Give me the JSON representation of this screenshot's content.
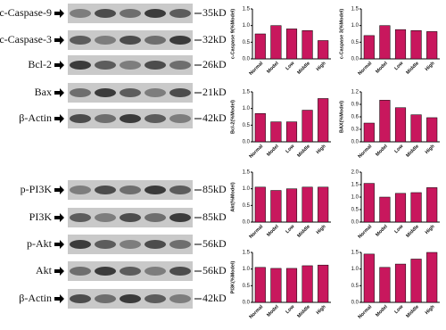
{
  "blots": [
    {
      "label": "c-Caspase-9",
      "size": "35kD"
    },
    {
      "label": "c-Caspase-3",
      "size": "32kD"
    },
    {
      "label": "Bcl-2",
      "size": "26kD"
    },
    {
      "label": "Bax",
      "size": "21kD"
    },
    {
      "label": "β-Actin",
      "size": "42kD"
    },
    {
      "label": "p-PI3K",
      "size": "85kD"
    },
    {
      "label": "PI3K",
      "size": "85kD"
    },
    {
      "label": "p-Akt",
      "size": "56kD"
    },
    {
      "label": "Akt",
      "size": "56kD"
    },
    {
      "label": "β-Actin",
      "size": "42kD"
    }
  ],
  "chart_data": [
    {
      "type": "bar",
      "y_label": "c-Caspase 9(%Model)",
      "categories": [
        "Normal",
        "Model",
        "Low",
        "Middle",
        "High"
      ],
      "values": [
        0.75,
        1.0,
        0.9,
        0.85,
        0.55
      ],
      "color": "#c8175d",
      "ylim": [
        0,
        1.5
      ],
      "yticks": [
        {
          "value": 0,
          "label": "0.0"
        },
        0.5,
        {
          "value": 1,
          "label": "1.0"
        },
        1.5
      ]
    },
    {
      "type": "bar",
      "y_label": "c-Caspase 3(%Model)",
      "categories": [
        "Normal",
        "Model",
        "Low",
        "Middle",
        "High"
      ],
      "values": [
        0.7,
        1.0,
        0.88,
        0.85,
        0.82
      ],
      "color": "#c8175d",
      "ylim": [
        0,
        1.5
      ],
      "yticks": [
        {
          "value": 0,
          "label": "0.0"
        },
        0.5,
        {
          "value": 1,
          "label": "1.0"
        },
        1.5
      ]
    },
    {
      "type": "bar",
      "y_label": "Bcl-2(%Model)",
      "categories": [
        "Normal",
        "Model",
        "Low",
        "Middle",
        "High"
      ],
      "values": [
        0.85,
        0.6,
        0.6,
        0.95,
        1.3
      ],
      "color": "#c8175d",
      "ylim": [
        0,
        1.5
      ],
      "yticks": [
        {
          "value": 0,
          "label": "0.0"
        },
        0.5,
        {
          "value": 1,
          "label": "1.0"
        },
        1.5
      ]
    },
    {
      "type": "bar",
      "y_label": "BAX(%Model)",
      "categories": [
        "Normal",
        "Model",
        "Low",
        "Middle",
        "High"
      ],
      "values": [
        0.45,
        1.0,
        0.82,
        0.65,
        0.58
      ],
      "color": "#c8175d",
      "ylim": [
        0,
        1.2
      ],
      "yticks": [
        {
          "value": 0,
          "label": "0.0"
        },
        0.3,
        0.6,
        0.9,
        1.2
      ]
    },
    {
      "type": "bar",
      "y_label": "Akt(%Model)",
      "categories": [
        "Normal",
        "Model",
        "Low",
        "Middle",
        "High"
      ],
      "values": [
        1.05,
        0.95,
        1.0,
        1.05,
        1.05
      ],
      "color": "#c8175d",
      "ylim": [
        0,
        1.5
      ],
      "yticks": [
        {
          "value": 0,
          "label": "0.0"
        },
        0.5,
        {
          "value": 1,
          "label": "1.0"
        },
        1.5
      ]
    },
    {
      "type": "bar",
      "categories": [
        "Normal",
        "Model",
        "Low",
        "Middle",
        "High"
      ],
      "values": [
        1.55,
        1.0,
        1.15,
        1.18,
        1.38
      ],
      "color": "#c8175d",
      "ylim": [
        0,
        2
      ],
      "yticks": [
        {
          "value": 0,
          "label": "0.0"
        },
        0.5,
        {
          "value": 1,
          "label": "1.0"
        },
        1.5,
        {
          "value": 2,
          "label": "2.0"
        }
      ]
    },
    {
      "type": "bar",
      "y_label": "PI3K(%Model)",
      "categories": [
        "Normal",
        "Model",
        "Low",
        "Middle",
        "High"
      ],
      "values": [
        1.05,
        1.02,
        1.02,
        1.1,
        1.12
      ],
      "color": "#c8175d",
      "ylim": [
        0,
        1.5
      ],
      "yticks": [
        {
          "value": 0,
          "label": "0.0"
        },
        0.5,
        {
          "value": 1,
          "label": "1.0"
        },
        1.5
      ]
    },
    {
      "type": "bar",
      "categories": [
        "Normal",
        "Model",
        "Low",
        "Middle",
        "High"
      ],
      "values": [
        1.45,
        1.05,
        1.15,
        1.3,
        1.5
      ],
      "color": "#c8175d",
      "ylim": [
        0,
        1.5
      ],
      "yticks": [
        {
          "value": 0,
          "label": "0.0"
        },
        0.5,
        {
          "value": 1,
          "label": "1.0"
        },
        1.5
      ]
    }
  ]
}
